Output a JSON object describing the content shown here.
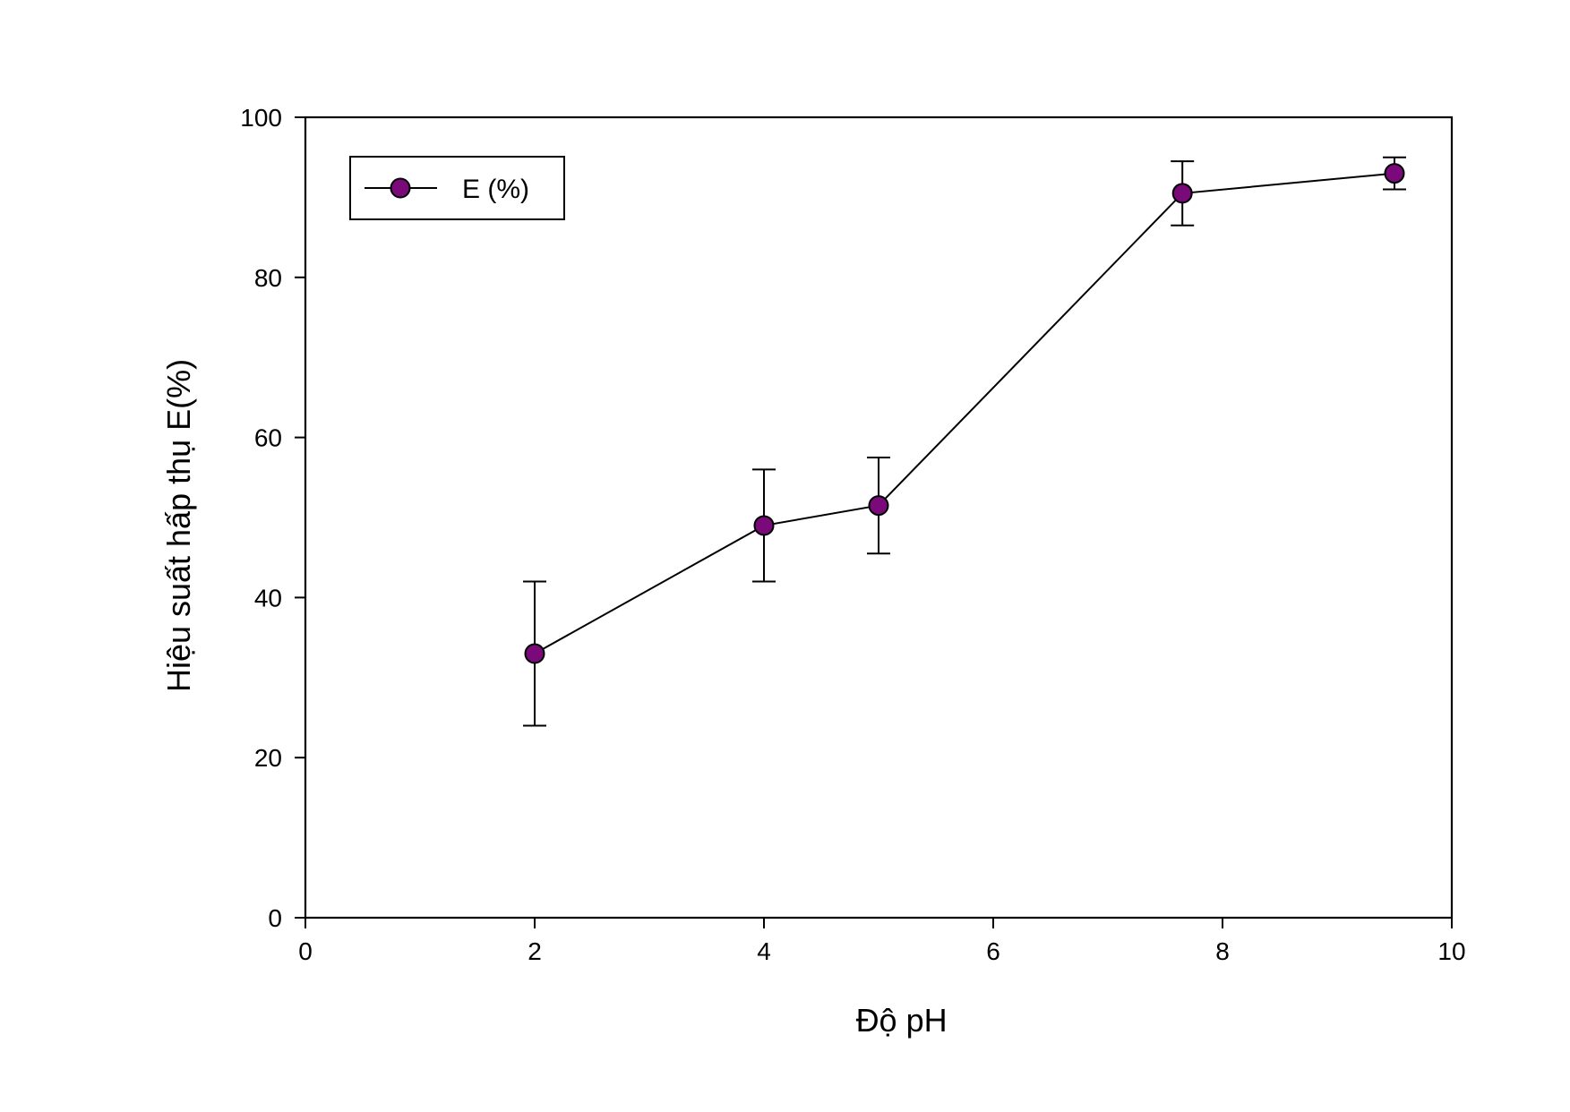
{
  "chart_data": {
    "type": "line",
    "title": "",
    "xlabel": "Độ pH",
    "ylabel": "Hiệu suất hấp thụ E(%)",
    "xlim": [
      0,
      10
    ],
    "ylim": [
      0,
      100
    ],
    "x_ticks": [
      0,
      2,
      4,
      6,
      8,
      10
    ],
    "y_ticks": [
      0,
      20,
      40,
      60,
      80,
      100
    ],
    "grid": false,
    "legend_position": "top-left",
    "series": [
      {
        "name": "E (%)",
        "color": "#7a0a7a",
        "marker": "circle",
        "points": [
          {
            "x": 2,
            "y": 33.0,
            "err_low": 24.0,
            "err_high": 42.0
          },
          {
            "x": 4,
            "y": 49.0,
            "err_low": 42.0,
            "err_high": 56.0
          },
          {
            "x": 5,
            "y": 51.5,
            "err_low": 45.5,
            "err_high": 57.5
          },
          {
            "x": 7.65,
            "y": 90.5,
            "err_low": 86.5,
            "err_high": 94.5
          },
          {
            "x": 9.5,
            "y": 93.0,
            "err_low": 91.0,
            "err_high": 95.0
          }
        ]
      }
    ]
  }
}
